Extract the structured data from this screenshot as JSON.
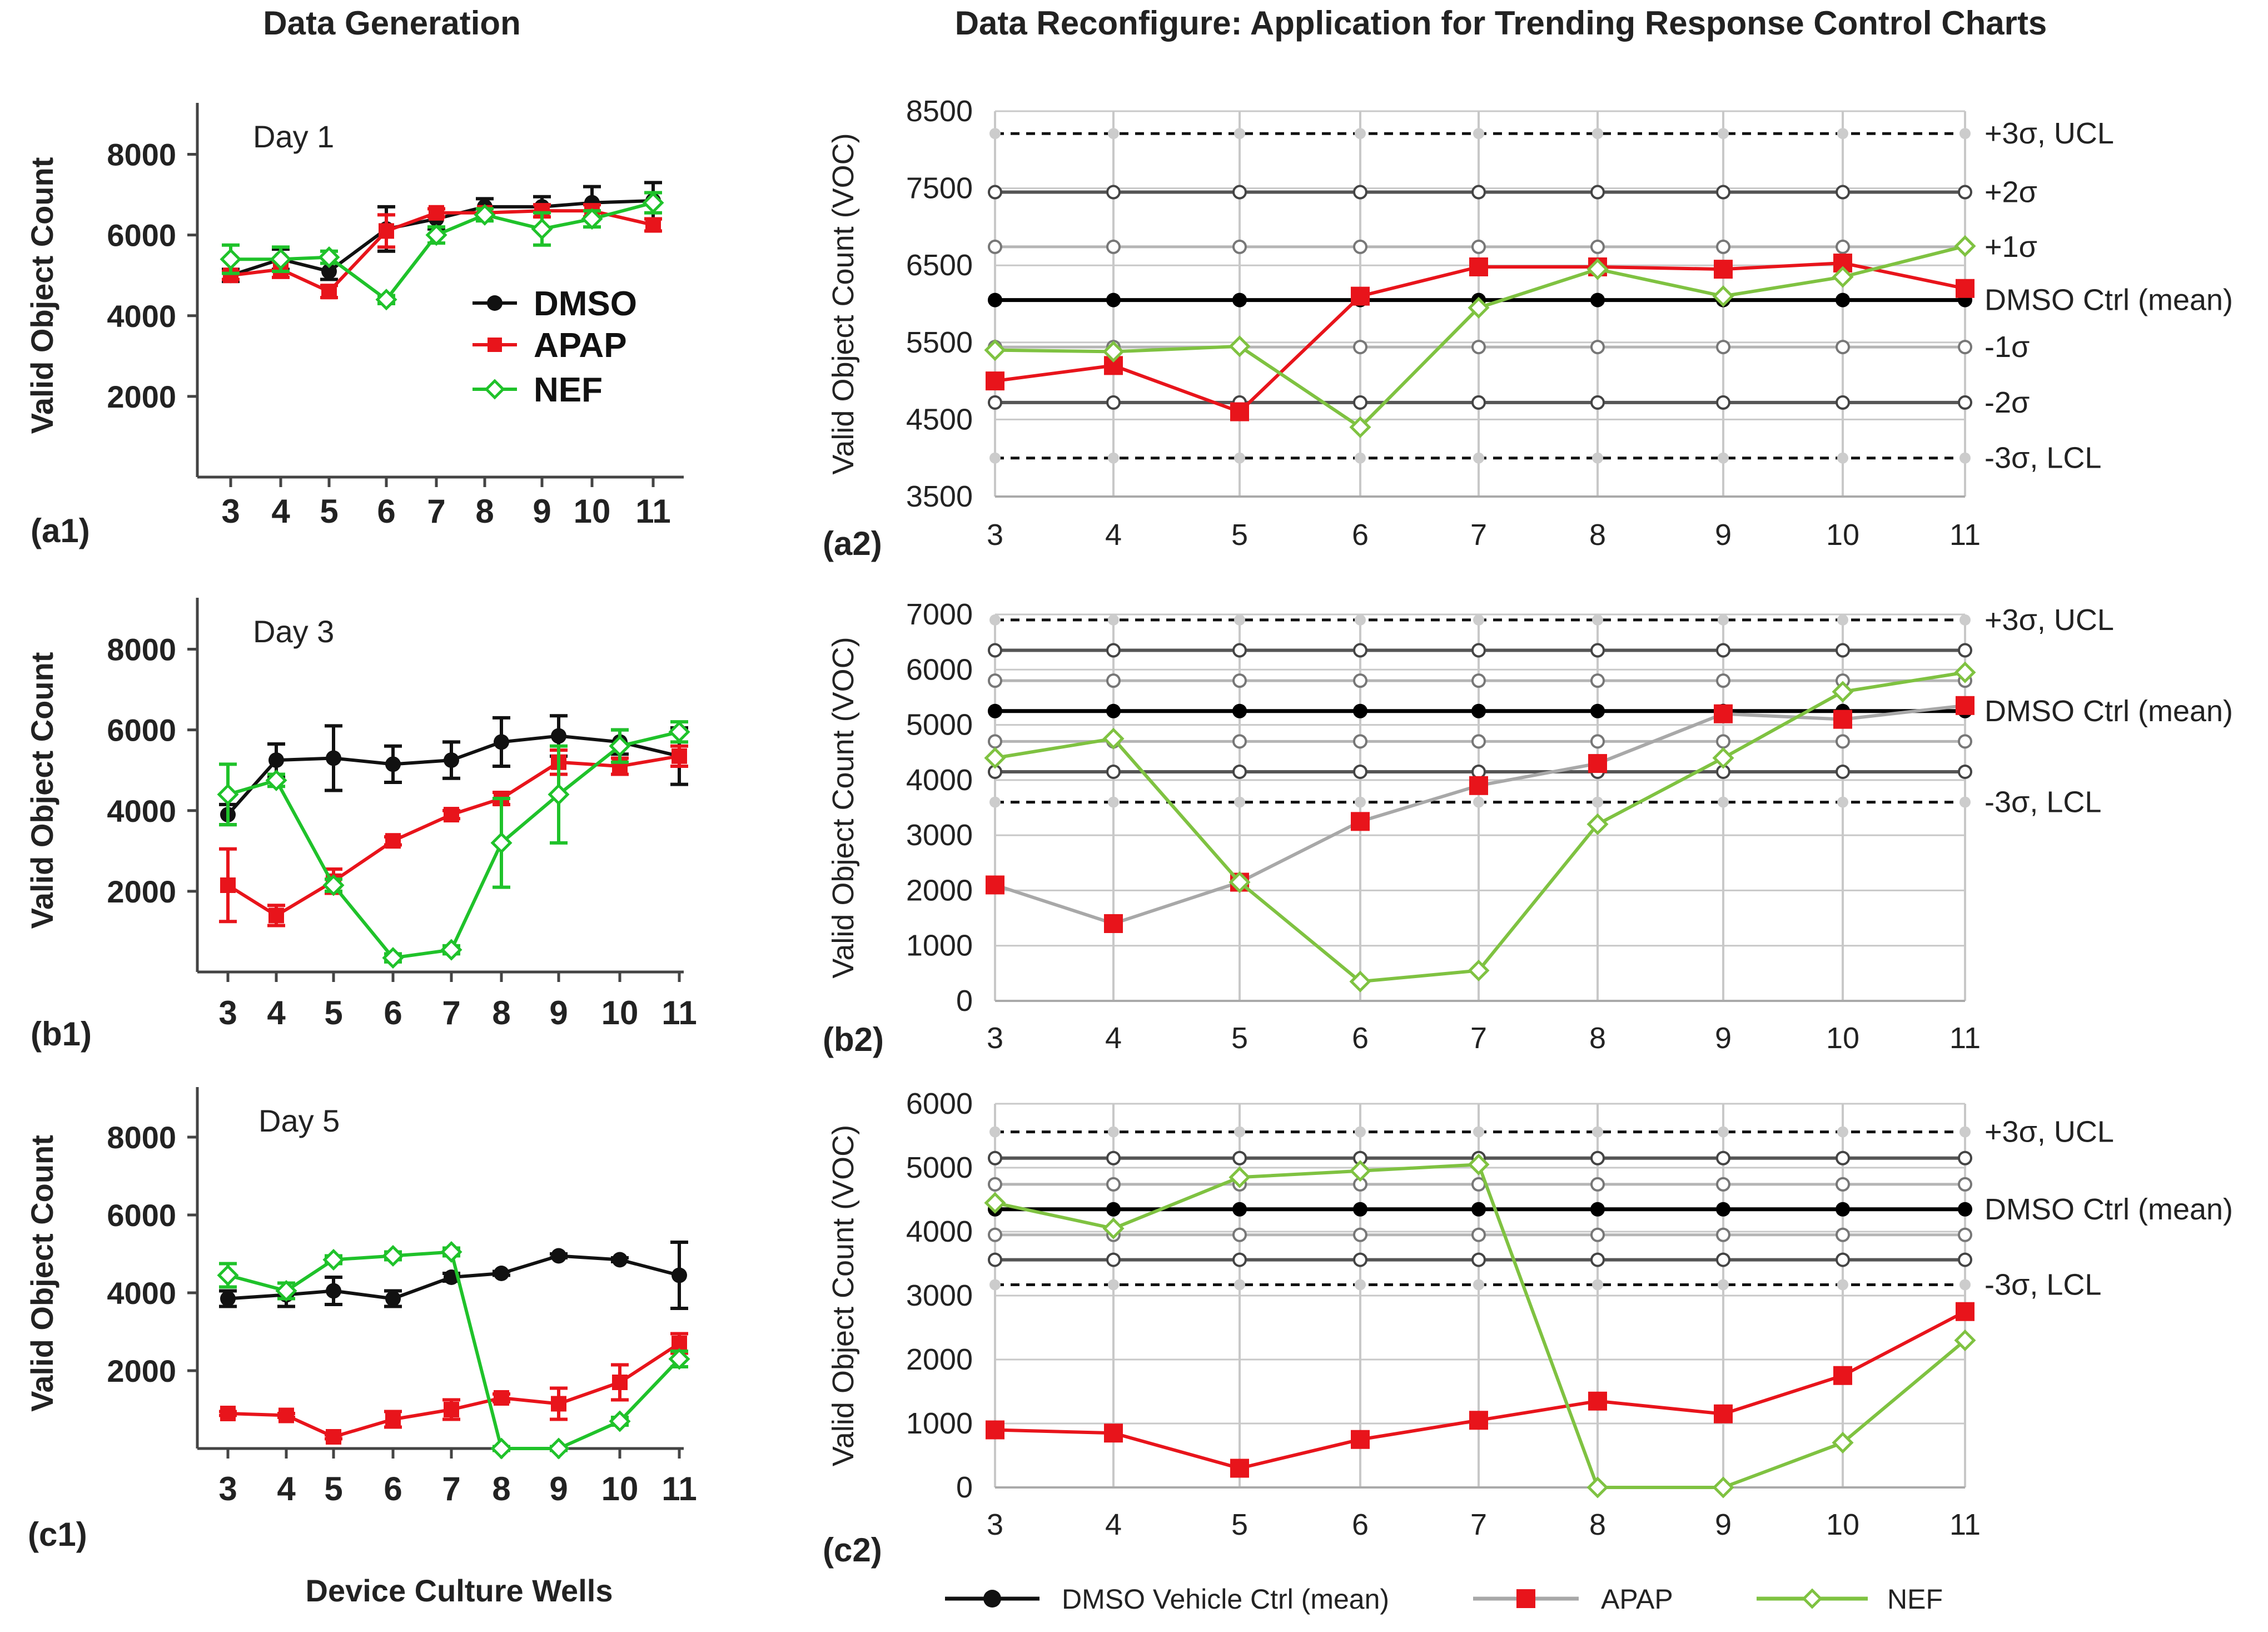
{
  "headings": {
    "left": "Data Generation",
    "right": "Data Reconfigure: Application for Trending Response Control Charts",
    "left_xlabel": "Device Culture Wells"
  },
  "colors": {
    "dmso": "#111111",
    "apap": "#e8141b",
    "nef_left": "#1fc22a",
    "nef_right": "#7fc241",
    "apap_line_b2": "#a8a8a8",
    "grid": "#c8c8c8"
  },
  "legend_left": [
    {
      "label": "DMSO"
    },
    {
      "label": "APAP"
    },
    {
      "label": "NEF"
    }
  ],
  "legend_bottom": [
    {
      "label": "DMSO Vehicle Ctrl (mean)"
    },
    {
      "label": "APAP"
    },
    {
      "label": "NEF"
    }
  ],
  "chart_data": [
    {
      "id": "a1",
      "panel_label": "(a1)",
      "type": "line",
      "annotation": "Day 1",
      "ylabel": "Valid Object Count",
      "xlabel": "",
      "x": [
        3,
        4,
        5,
        6,
        7,
        8,
        9,
        10,
        11
      ],
      "ylim": [
        0,
        9000
      ],
      "yticks": [
        2000,
        4000,
        6000,
        8000
      ],
      "series": [
        {
          "name": "DMSO",
          "values": [
            5000,
            5400,
            5100,
            6150,
            6400,
            6700,
            6700,
            6800,
            6850
          ],
          "err": [
            150,
            250,
            200,
            550,
            250,
            200,
            250,
            400,
            450
          ]
        },
        {
          "name": "APAP",
          "values": [
            5000,
            5150,
            4600,
            6100,
            6550,
            6550,
            6600,
            6600,
            6250
          ],
          "err": [
            100,
            200,
            150,
            400,
            100,
            100,
            150,
            150,
            150
          ]
        },
        {
          "name": "NEF",
          "values": [
            5400,
            5400,
            5450,
            4400,
            6000,
            6500,
            6150,
            6400,
            6800
          ],
          "err": [
            350,
            300,
            150,
            100,
            200,
            150,
            400,
            200,
            250
          ]
        }
      ]
    },
    {
      "id": "a2",
      "panel_label": "(a2)",
      "type": "line",
      "ylabel": "Valid Object Count (VOC)",
      "x": [
        3,
        4,
        5,
        6,
        7,
        8,
        9,
        10,
        11
      ],
      "ylim": [
        3500,
        8500
      ],
      "yticks": [
        3500,
        4500,
        5500,
        6500,
        7500,
        8500
      ],
      "control_lines": [
        {
          "label": "+3σ, UCL",
          "value": 8210,
          "style": "dash"
        },
        {
          "label": "+2σ",
          "value": 7450,
          "style": "dark"
        },
        {
          "label": "+1σ",
          "value": 6740,
          "style": "light"
        },
        {
          "label": "DMSO Ctrl (mean)",
          "value": 6050,
          "style": "mean"
        },
        {
          "label": "-1σ",
          "value": 5440,
          "style": "light"
        },
        {
          "label": "-2σ",
          "value": 4720,
          "style": "dark"
        },
        {
          "label": "-3σ, LCL",
          "value": 4000,
          "style": "dash"
        }
      ],
      "series": [
        {
          "name": "APAP",
          "values": [
            5000,
            5200,
            4600,
            6100,
            6480,
            6480,
            6450,
            6530,
            6200
          ]
        },
        {
          "name": "NEF",
          "values": [
            5400,
            5380,
            5450,
            4400,
            5950,
            6450,
            6100,
            6350,
            6750
          ]
        }
      ]
    },
    {
      "id": "b1",
      "panel_label": "(b1)",
      "type": "line",
      "annotation": "Day 3",
      "ylabel": "Valid Object Count",
      "xlabel": "",
      "x": [
        3,
        4,
        5,
        6,
        7,
        8,
        9,
        10,
        11
      ],
      "ylim": [
        0,
        9000
      ],
      "yticks": [
        2000,
        4000,
        6000,
        8000
      ],
      "series": [
        {
          "name": "DMSO",
          "values": [
            3900,
            5250,
            5300,
            5150,
            5250,
            5700,
            5850,
            5700,
            5350
          ],
          "err": [
            250,
            400,
            800,
            450,
            450,
            600,
            500,
            300,
            700
          ]
        },
        {
          "name": "APAP",
          "values": [
            2150,
            1400,
            2250,
            3250,
            3900,
            4300,
            5200,
            5100,
            5350
          ],
          "err": [
            900,
            250,
            300,
            100,
            100,
            150,
            300,
            200,
            250
          ]
        },
        {
          "name": "NEF",
          "values": [
            4400,
            4750,
            2150,
            350,
            550,
            3200,
            4400,
            5600,
            5950
          ],
          "err": [
            750,
            150,
            150,
            100,
            100,
            1100,
            1200,
            400,
            250
          ]
        }
      ]
    },
    {
      "id": "b2",
      "panel_label": "(b2)",
      "type": "line",
      "ylabel": "Valid Object Count (VOC)",
      "x": [
        3,
        4,
        5,
        6,
        7,
        8,
        9,
        10,
        11
      ],
      "ylim": [
        0,
        7000
      ],
      "yticks": [
        0,
        1000,
        2000,
        3000,
        4000,
        5000,
        6000,
        7000
      ],
      "control_lines": [
        {
          "label": "+3σ, UCL",
          "value": 6900,
          "style": "dash"
        },
        {
          "label": "",
          "value": 6350,
          "style": "dark"
        },
        {
          "label": "",
          "value": 5800,
          "style": "light"
        },
        {
          "label": "DMSO Ctrl (mean)",
          "value": 5250,
          "style": "mean"
        },
        {
          "label": "",
          "value": 4700,
          "style": "light"
        },
        {
          "label": "",
          "value": 4150,
          "style": "dark"
        },
        {
          "label": "-3σ, LCL",
          "value": 3600,
          "style": "dash"
        }
      ],
      "series": [
        {
          "name": "APAP",
          "values": [
            2100,
            1400,
            2150,
            3250,
            3900,
            4300,
            5200,
            5100,
            5350
          ]
        },
        {
          "name": "NEF",
          "values": [
            4400,
            4750,
            2150,
            350,
            550,
            3200,
            4400,
            5600,
            5950
          ]
        }
      ]
    },
    {
      "id": "c1",
      "panel_label": "(c1)",
      "type": "line",
      "annotation": "Day 5",
      "ylabel": "Valid Object Count",
      "xlabel": "Device Culture Wells",
      "x": [
        3,
        4,
        5,
        6,
        7,
        8,
        9,
        10,
        11
      ],
      "ylim": [
        0,
        9000
      ],
      "yticks": [
        2000,
        4000,
        6000,
        8000
      ],
      "series": [
        {
          "name": "DMSO",
          "values": [
            3850,
            3950,
            4050,
            3850,
            4400,
            4500,
            4950,
            4850,
            4450
          ],
          "err": [
            200,
            300,
            350,
            200,
            100,
            50,
            50,
            50,
            850
          ]
        },
        {
          "name": "APAP",
          "values": [
            900,
            850,
            300,
            750,
            1000,
            1300,
            1150,
            1700,
            2700
          ],
          "err": [
            50,
            50,
            50,
            200,
            250,
            100,
            400,
            450,
            250
          ]
        },
        {
          "name": "NEF",
          "values": [
            4450,
            4050,
            4850,
            4950,
            5050,
            0,
            0,
            700,
            2300
          ],
          "err": [
            300,
            200,
            100,
            100,
            100,
            50,
            50,
            100,
            200
          ]
        }
      ]
    },
    {
      "id": "c2",
      "panel_label": "(c2)",
      "type": "line",
      "ylabel": "Valid Object Count (VOC)",
      "x": [
        3,
        4,
        5,
        6,
        7,
        8,
        9,
        10,
        11
      ],
      "ylim": [
        0,
        6000
      ],
      "yticks": [
        0,
        1000,
        2000,
        3000,
        4000,
        5000,
        6000
      ],
      "control_lines": [
        {
          "label": "+3σ, UCL",
          "value": 5560,
          "style": "dash"
        },
        {
          "label": "",
          "value": 5150,
          "style": "dark"
        },
        {
          "label": "",
          "value": 4740,
          "style": "light"
        },
        {
          "label": "DMSO Ctrl (mean)",
          "value": 4350,
          "style": "mean"
        },
        {
          "label": "",
          "value": 3950,
          "style": "light"
        },
        {
          "label": "",
          "value": 3560,
          "style": "dark"
        },
        {
          "label": "-3σ, LCL",
          "value": 3170,
          "style": "dash"
        }
      ],
      "series": [
        {
          "name": "APAP",
          "values": [
            900,
            850,
            300,
            750,
            1050,
            1350,
            1150,
            1750,
            2750
          ]
        },
        {
          "name": "NEF",
          "values": [
            4450,
            4050,
            4850,
            4950,
            5050,
            0,
            0,
            700,
            2300
          ]
        }
      ]
    }
  ]
}
